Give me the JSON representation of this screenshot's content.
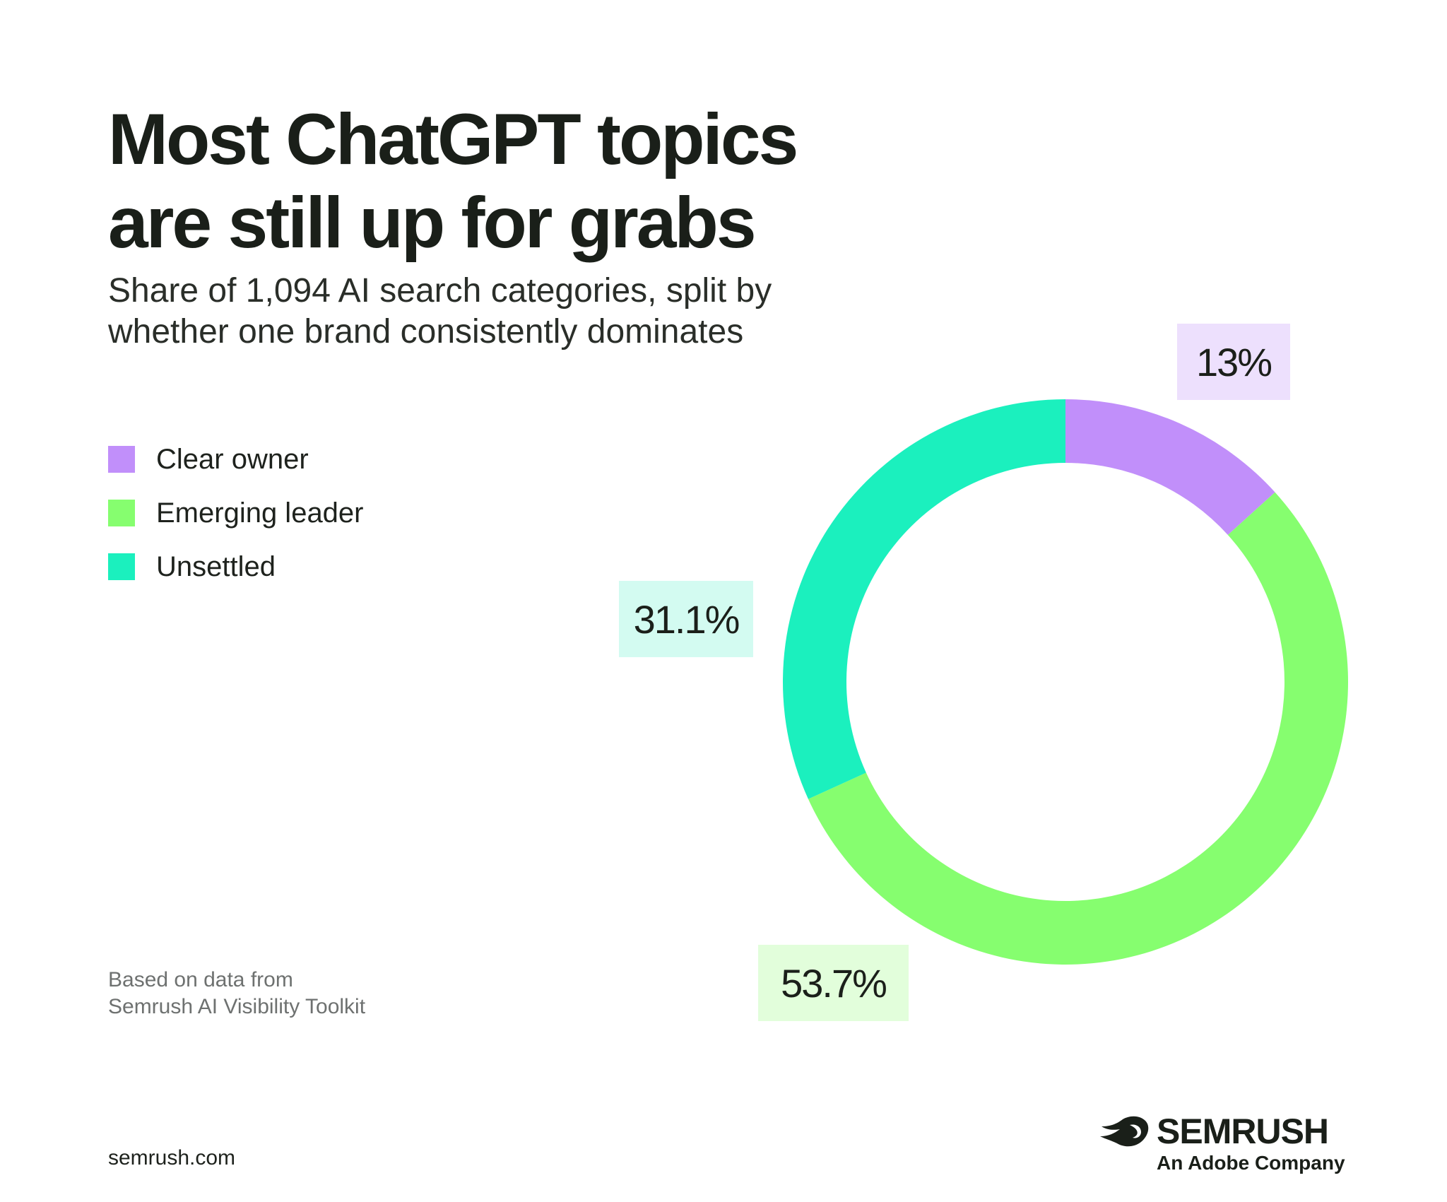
{
  "title_lines": [
    "Most ChatGPT topics",
    "are still up for grabs"
  ],
  "subtitle_lines": [
    "Share of 1,094 AI search categories, split by",
    "whether one brand consistently dominates"
  ],
  "legend": [
    {
      "label": "Clear owner",
      "color": "#c18ffa"
    },
    {
      "label": "Emerging leader",
      "color": "#86fe6f"
    },
    {
      "label": "Unsettled",
      "color": "#1bf0be"
    }
  ],
  "chart_data": {
    "type": "pie",
    "donut": true,
    "categories": [
      "Clear owner",
      "Emerging leader",
      "Unsettled"
    ],
    "values": [
      13,
      53.7,
      31.1
    ],
    "value_labels": [
      "13%",
      "53.7%",
      "31.1%"
    ],
    "colors": [
      "#c18ffa",
      "#86fe6f",
      "#1bf0be"
    ],
    "label_backgrounds": [
      "#ede0fd",
      "#e2fedb",
      "#d3fbf1"
    ],
    "legend_position": "left"
  },
  "source_lines": [
    "Based on data from",
    "Semrush AI Visibility Toolkit"
  ],
  "site": "semrush.com",
  "brand": {
    "name": "SEMRUSH",
    "tagline": "An Adobe Company",
    "icon": "semrush-fireball-icon"
  }
}
